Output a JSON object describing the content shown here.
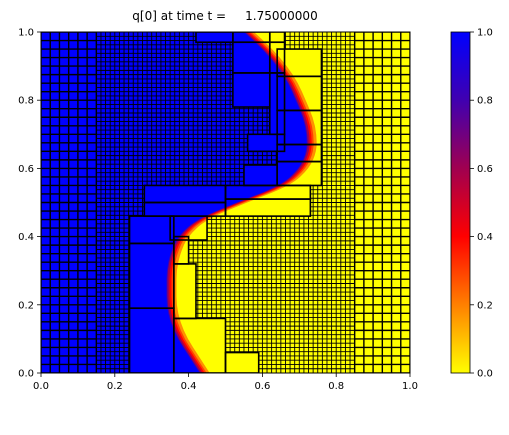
{
  "chart_data": {
    "type": "heatmap",
    "title": "q[0] at time t =     1.75000000",
    "xlim": [
      0,
      1
    ],
    "ylim": [
      0,
      1
    ],
    "x_ticks": [
      "0.0",
      "0.2",
      "0.4",
      "0.6",
      "0.8",
      "1.0"
    ],
    "y_ticks": [
      "0.0",
      "0.2",
      "0.4",
      "0.6",
      "0.8",
      "1.0"
    ],
    "colorbar": {
      "range": [
        0,
        1
      ],
      "ticks": [
        "0.0",
        "0.2",
        "0.4",
        "0.6",
        "0.8",
        "1.0"
      ],
      "colors": [
        "#ffff00",
        "#ff8000",
        "#ff0000",
        "#a00050",
        "#4000b0",
        "#0000ff"
      ]
    },
    "field": {
      "left_value": 1.0,
      "right_value": 0.0,
      "front_curve_x_at_y": [
        [
          0.0,
          0.43
        ],
        [
          0.05,
          0.4
        ],
        [
          0.1,
          0.37
        ],
        [
          0.15,
          0.35
        ],
        [
          0.2,
          0.34
        ],
        [
          0.25,
          0.34
        ],
        [
          0.3,
          0.34
        ],
        [
          0.35,
          0.35
        ],
        [
          0.4,
          0.37
        ],
        [
          0.45,
          0.42
        ],
        [
          0.5,
          0.53
        ],
        [
          0.55,
          0.65
        ],
        [
          0.6,
          0.7
        ],
        [
          0.65,
          0.72
        ],
        [
          0.7,
          0.72
        ],
        [
          0.75,
          0.71
        ],
        [
          0.8,
          0.69
        ],
        [
          0.85,
          0.67
        ],
        [
          0.9,
          0.64
        ],
        [
          0.95,
          0.6
        ],
        [
          1.0,
          0.55
        ]
      ]
    },
    "amr_levels": [
      {
        "level": 1,
        "x_range": [
          0.0,
          0.15
        ],
        "cell": 0.025
      },
      {
        "level": 2,
        "x_range": [
          0.15,
          0.85
        ],
        "cell": 0.0125
      },
      {
        "level": 1,
        "x_range": [
          0.85,
          1.0
        ],
        "cell": 0.025
      }
    ],
    "refined_patches": [
      [
        0.24,
        0.0,
        0.36,
        0.19
      ],
      [
        0.24,
        0.19,
        0.36,
        0.38
      ],
      [
        0.24,
        0.38,
        0.36,
        0.46
      ],
      [
        0.36,
        0.0,
        0.5,
        0.16
      ],
      [
        0.36,
        0.16,
        0.42,
        0.32
      ],
      [
        0.36,
        0.32,
        0.4,
        0.4
      ],
      [
        0.5,
        0.0,
        0.59,
        0.06
      ],
      [
        0.35,
        0.39,
        0.45,
        0.46
      ],
      [
        0.28,
        0.46,
        0.5,
        0.5
      ],
      [
        0.28,
        0.5,
        0.5,
        0.55
      ],
      [
        0.5,
        0.46,
        0.73,
        0.51
      ],
      [
        0.5,
        0.51,
        0.73,
        0.55
      ],
      [
        0.55,
        0.55,
        0.64,
        0.61
      ],
      [
        0.64,
        0.55,
        0.76,
        0.62
      ],
      [
        0.64,
        0.62,
        0.76,
        0.67
      ],
      [
        0.64,
        0.67,
        0.76,
        0.77
      ],
      [
        0.64,
        0.77,
        0.76,
        0.87
      ],
      [
        0.64,
        0.87,
        0.76,
        0.95
      ],
      [
        0.52,
        0.78,
        0.62,
        0.88
      ],
      [
        0.62,
        0.7,
        0.66,
        0.88
      ],
      [
        0.52,
        0.88,
        0.62,
        0.97
      ],
      [
        0.62,
        0.88,
        0.66,
        0.97
      ],
      [
        0.42,
        0.97,
        0.52,
        1.0
      ],
      [
        0.52,
        0.97,
        0.62,
        1.0
      ],
      [
        0.62,
        0.97,
        0.66,
        1.0
      ],
      [
        0.56,
        0.65,
        0.66,
        0.7
      ]
    ]
  }
}
